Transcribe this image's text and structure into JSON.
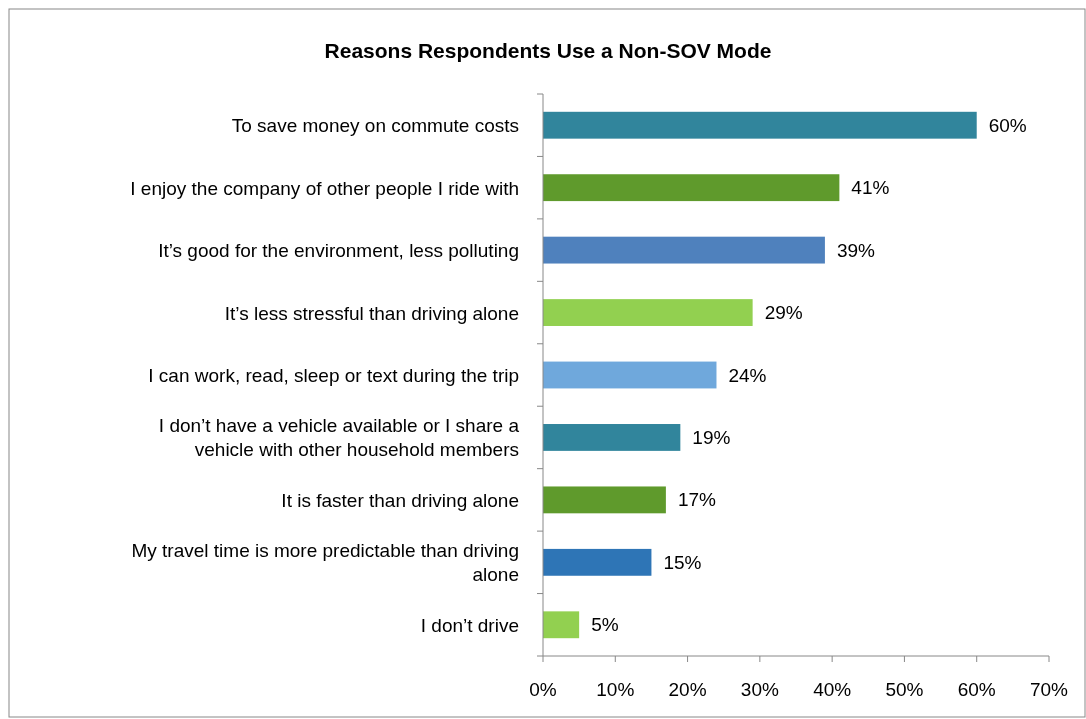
{
  "chart_data": {
    "type": "bar",
    "orientation": "horizontal",
    "title": "Reasons Respondents Use a Non-SOV Mode",
    "categories": [
      "To save money on commute costs",
      "I enjoy the company of other people I ride with",
      "It’s good for the environment, less polluting",
      "It’s less stressful than driving alone",
      "I can work, read, sleep or text during the trip",
      "I don’t have a vehicle available or I share a vehicle with other household members",
      "It is faster than driving alone",
      "My travel time is more predictable than driving alone",
      "I don’t drive"
    ],
    "values": [
      60,
      41,
      39,
      29,
      24,
      19,
      17,
      15,
      5
    ],
    "colors": [
      "#31859c",
      "#5f9a2c",
      "#4f81bd",
      "#92d050",
      "#6fa8dc",
      "#31859c",
      "#5f9a2c",
      "#2e75b6",
      "#92d050"
    ],
    "value_labels": [
      "60%",
      "41%",
      "39%",
      "29%",
      "24%",
      "19%",
      "17%",
      "15%",
      "5%"
    ],
    "xlim": [
      0,
      70
    ],
    "xticks": [
      {
        "value": 0,
        "label": "0%"
      },
      {
        "value": 10,
        "label": "10%"
      },
      {
        "value": 20,
        "label": "20%"
      },
      {
        "value": 30,
        "label": "30%"
      },
      {
        "value": 40,
        "label": "40%"
      },
      {
        "value": 50,
        "label": "50%"
      },
      {
        "value": 60,
        "label": "60%"
      },
      {
        "value": 70,
        "label": "70%"
      }
    ],
    "grid": false
  }
}
